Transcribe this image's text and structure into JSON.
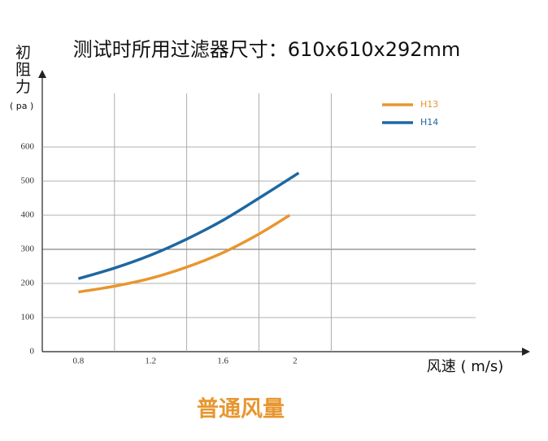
{
  "chart_data": {
    "type": "line",
    "title": "测试时所用过滤器尺寸：610x610x292mm",
    "y_label": "初阻力",
    "y_unit": "( pa )",
    "x_label": "风速 ( m/s)",
    "caption": "普通风量",
    "xlim": [
      0.6,
      3.0
    ],
    "xticks": [
      0.8,
      1.2,
      1.6,
      2.0
    ],
    "xgrid": [
      1.0,
      1.4,
      1.8,
      2.2
    ],
    "ylim": [
      0,
      750
    ],
    "yticks": [
      0,
      100,
      200,
      300,
      400,
      500,
      600
    ],
    "grid": true,
    "legend": "upper right",
    "series": [
      {
        "name": "H13",
        "color": "#e8962f",
        "x": [
          0.8,
          1.0,
          1.2,
          1.4,
          1.6,
          1.8,
          1.97
        ],
        "values": [
          175,
          192,
          215,
          248,
          290,
          345,
          400
        ]
      },
      {
        "name": "H14",
        "color": "#1f67a0",
        "x": [
          0.8,
          1.0,
          1.2,
          1.4,
          1.6,
          1.8,
          2.02
        ],
        "values": [
          214,
          245,
          283,
          330,
          385,
          450,
          524
        ]
      }
    ]
  }
}
